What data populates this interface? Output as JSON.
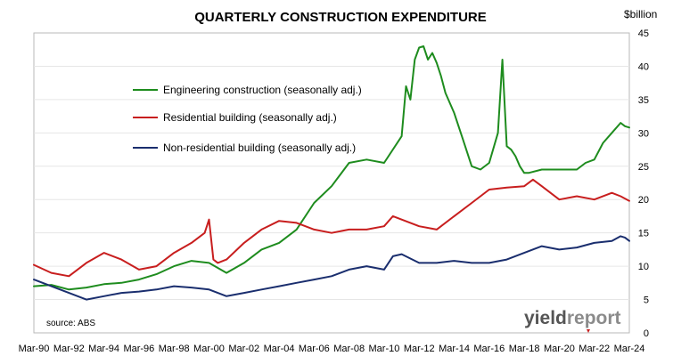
{
  "chart_data": {
    "type": "line",
    "title": "QUARTERLY CONSTRUCTION EXPENDITURE",
    "unit_label": "$billion",
    "source": "source: ABS",
    "y_axis_side": "right",
    "ylim": [
      0,
      45
    ],
    "y_ticks": [
      0,
      5,
      10,
      15,
      20,
      25,
      30,
      35,
      40,
      45
    ],
    "grid": true,
    "legend_position": "upper-left",
    "x_tick_labels": [
      "Mar-90",
      "Mar-92",
      "Mar-94",
      "Mar-96",
      "Mar-98",
      "Mar-00",
      "Mar-02",
      "Mar-04",
      "Mar-06",
      "Mar-08",
      "Mar-10",
      "Mar-12",
      "Mar-14",
      "Mar-16",
      "Mar-18",
      "Mar-20",
      "Mar-22",
      "Mar-24"
    ],
    "x_start": "Mar-90",
    "x_end": "Mar-24",
    "series": [
      {
        "name": "Engineering construction (seasonally adj.)",
        "color": "#1e8c1e",
        "x": [
          "Mar-90",
          "Mar-91",
          "Mar-92",
          "Mar-93",
          "Mar-94",
          "Mar-95",
          "Mar-96",
          "Mar-97",
          "Mar-98",
          "Mar-99",
          "Mar-00",
          "Mar-01",
          "Mar-02",
          "Mar-03",
          "Mar-04",
          "Mar-05",
          "Mar-06",
          "Mar-07",
          "Mar-08",
          "Mar-09",
          "Mar-10",
          "Mar-11",
          "Jun-11",
          "Sep-11",
          "Dec-11",
          "Mar-12",
          "Jun-12",
          "Sep-12",
          "Dec-12",
          "Mar-13",
          "Jun-13",
          "Sep-13",
          "Mar-14",
          "Sep-14",
          "Mar-15",
          "Sep-15",
          "Mar-16",
          "Sep-16",
          "Dec-16",
          "Mar-17",
          "Jun-17",
          "Sep-17",
          "Dec-17",
          "Mar-18",
          "Jun-18",
          "Mar-19",
          "Mar-20",
          "Mar-21",
          "Sep-21",
          "Mar-22",
          "Sep-22",
          "Mar-23",
          "Sep-23",
          "Dec-23",
          "Mar-24"
        ],
        "values": [
          7.0,
          7.2,
          6.5,
          6.8,
          7.3,
          7.5,
          8.0,
          8.8,
          10.0,
          10.8,
          10.5,
          9.0,
          10.5,
          12.5,
          13.5,
          15.5,
          19.5,
          22.0,
          25.5,
          26.0,
          25.5,
          29.5,
          37.0,
          35.0,
          41.0,
          42.8,
          43.0,
          41.0,
          42.0,
          40.5,
          38.5,
          36.0,
          33.0,
          29.0,
          25.0,
          24.5,
          25.5,
          30.0,
          41.0,
          28.0,
          27.5,
          26.5,
          25.0,
          24.0,
          24.0,
          24.5,
          24.5,
          24.5,
          25.5,
          26.0,
          28.5,
          30.0,
          31.5,
          31.0,
          30.8
        ]
      },
      {
        "name": "Residential building (seasonally adj.)",
        "color": "#c81e1e",
        "x": [
          "Mar-90",
          "Mar-91",
          "Mar-92",
          "Mar-93",
          "Mar-94",
          "Mar-95",
          "Mar-96",
          "Mar-97",
          "Mar-98",
          "Mar-99",
          "Dec-99",
          "Mar-00",
          "Jun-00",
          "Sep-00",
          "Mar-01",
          "Mar-02",
          "Mar-03",
          "Mar-04",
          "Mar-05",
          "Mar-06",
          "Mar-07",
          "Mar-08",
          "Mar-09",
          "Mar-10",
          "Sep-10",
          "Mar-11",
          "Mar-12",
          "Mar-13",
          "Mar-14",
          "Mar-15",
          "Mar-16",
          "Mar-17",
          "Mar-18",
          "Sep-18",
          "Mar-19",
          "Mar-20",
          "Mar-21",
          "Mar-22",
          "Mar-23",
          "Sep-23",
          "Mar-24"
        ],
        "values": [
          10.2,
          9.0,
          8.5,
          10.5,
          12.0,
          11.0,
          9.5,
          10.0,
          12.0,
          13.5,
          15.0,
          17.0,
          11.0,
          10.5,
          11.0,
          13.5,
          15.5,
          16.8,
          16.5,
          15.5,
          15.0,
          15.5,
          15.5,
          16.0,
          17.5,
          17.0,
          16.0,
          15.5,
          17.5,
          19.5,
          21.5,
          21.8,
          22.0,
          23.0,
          22.0,
          20.0,
          20.5,
          20.0,
          21.0,
          20.5,
          19.8
        ]
      },
      {
        "name": "Non-residential building (seasonally adj.)",
        "color": "#1a2e6e",
        "x": [
          "Mar-90",
          "Mar-91",
          "Mar-92",
          "Mar-93",
          "Mar-94",
          "Mar-95",
          "Mar-96",
          "Mar-97",
          "Mar-98",
          "Mar-99",
          "Mar-00",
          "Mar-01",
          "Mar-02",
          "Mar-03",
          "Mar-04",
          "Mar-05",
          "Mar-06",
          "Mar-07",
          "Mar-08",
          "Mar-09",
          "Mar-10",
          "Sep-10",
          "Mar-11",
          "Mar-12",
          "Mar-13",
          "Mar-14",
          "Mar-15",
          "Mar-16",
          "Mar-17",
          "Mar-18",
          "Mar-19",
          "Mar-20",
          "Mar-21",
          "Mar-22",
          "Mar-23",
          "Sep-23",
          "Dec-23",
          "Mar-24"
        ],
        "values": [
          8.0,
          7.0,
          6.0,
          5.0,
          5.5,
          6.0,
          6.2,
          6.5,
          7.0,
          6.8,
          6.5,
          5.5,
          6.0,
          6.5,
          7.0,
          7.5,
          8.0,
          8.5,
          9.5,
          10.0,
          9.5,
          11.5,
          11.8,
          10.5,
          10.5,
          10.8,
          10.5,
          10.5,
          11.0,
          12.0,
          13.0,
          12.5,
          12.8,
          13.5,
          13.8,
          14.5,
          14.3,
          13.8
        ]
      }
    ]
  },
  "logo": {
    "text_a": "yield",
    "text_b": "report"
  }
}
